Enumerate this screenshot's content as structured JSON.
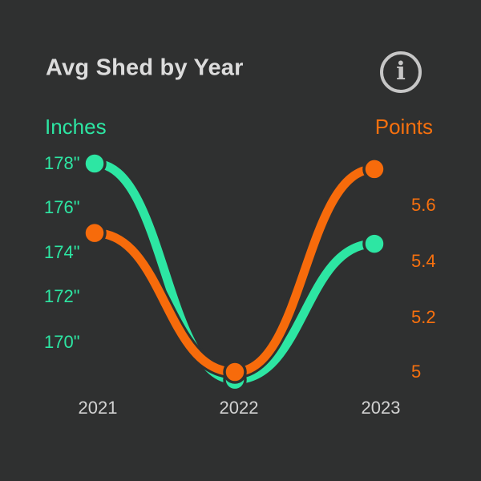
{
  "header": {
    "title": "Avg Shed by Year",
    "info_glyph": "i"
  },
  "left_axis": {
    "title": "Inches",
    "ticks": [
      "178\"",
      "176\"",
      "174\"",
      "172\"",
      "170\""
    ]
  },
  "right_axis": {
    "title": "Points",
    "ticks": [
      "5.6",
      "5.4",
      "5.2",
      "5"
    ]
  },
  "x_axis": {
    "ticks": [
      "2021",
      "2022",
      "2023"
    ]
  },
  "colors": {
    "background": "#2f3030",
    "inches_green": "#2de6a3",
    "points_orange": "#f76b0b",
    "title_text": "#dcdcdc",
    "year_text": "#d2d2d2",
    "info_icon": "#c6c6c6"
  },
  "chart_data": {
    "type": "line",
    "title": "Avg Shed by Year",
    "categories": [
      "2021",
      "2022",
      "2023"
    ],
    "series": [
      {
        "name": "Inches",
        "axis": "left",
        "color": "#2de6a3",
        "values": [
          178,
          168.3,
          174.4
        ]
      },
      {
        "name": "Points",
        "axis": "right",
        "color": "#f76b0b",
        "values": [
          5.5,
          5.0,
          5.73
        ]
      }
    ],
    "left_axis": {
      "label": "Inches",
      "tick_values": [
        178,
        176,
        174,
        172,
        170
      ],
      "unit": "inches"
    },
    "right_axis": {
      "label": "Points",
      "tick_values": [
        5.6,
        5.4,
        5.2,
        5
      ],
      "unit": "points"
    },
    "grid": false,
    "legend": "colored-axis-labels",
    "marker": "circle",
    "curve": "smooth-ease"
  }
}
